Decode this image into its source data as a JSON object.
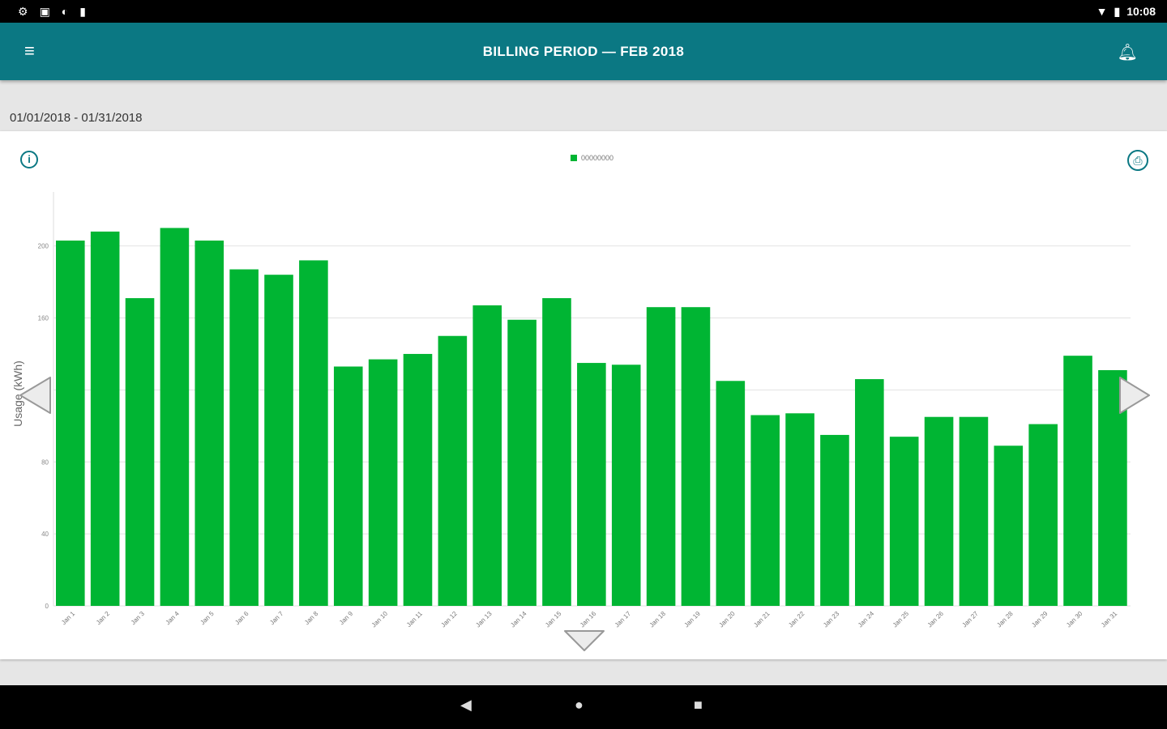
{
  "status_bar": {
    "time": "10:08"
  },
  "app_bar": {
    "title": "BILLING PERIOD  —  FEB 2018"
  },
  "date_range": "01/01/2018 - 01/31/2018",
  "colors": {
    "accent": "#0b7883",
    "bar": "#00b533"
  },
  "chart_data": {
    "type": "bar",
    "legend": [
      "00000000"
    ],
    "legend_position": "top",
    "ylabel": "Usage (kWh)",
    "ylim": [
      0,
      230
    ],
    "yticks": [
      0,
      40,
      80,
      120,
      160,
      200
    ],
    "ytick_labels": [
      "0",
      "40",
      "80",
      "",
      "160",
      "200"
    ],
    "grid": true,
    "categories": [
      "Jan 1",
      "Jan 2",
      "Jan 3",
      "Jan 4",
      "Jan 5",
      "Jan 6",
      "Jan 7",
      "Jan 8",
      "Jan 9",
      "Jan 10",
      "Jan 11",
      "Jan 12",
      "Jan 13",
      "Jan 14",
      "Jan 15",
      "Jan 16",
      "Jan 17",
      "Jan 18",
      "Jan 19",
      "Jan 20",
      "Jan 21",
      "Jan 22",
      "Jan 23",
      "Jan 24",
      "Jan 25",
      "Jan 26",
      "Jan 27",
      "Jan 28",
      "Jan 29",
      "Jan 30",
      "Jan 31"
    ],
    "values": [
      203,
      208,
      171,
      210,
      203,
      187,
      184,
      192,
      133,
      137,
      140,
      150,
      167,
      159,
      171,
      135,
      134,
      166,
      166,
      125,
      106,
      107,
      95,
      126,
      94,
      105,
      105,
      89,
      101,
      139,
      131
    ]
  },
  "icons": {
    "menu": "hamburger-icon",
    "notification": "bell-icon",
    "info": "info-icon",
    "print": "print-icon",
    "prev": "left-arrow-icon",
    "next": "right-arrow-icon",
    "down": "down-arrow-icon"
  }
}
